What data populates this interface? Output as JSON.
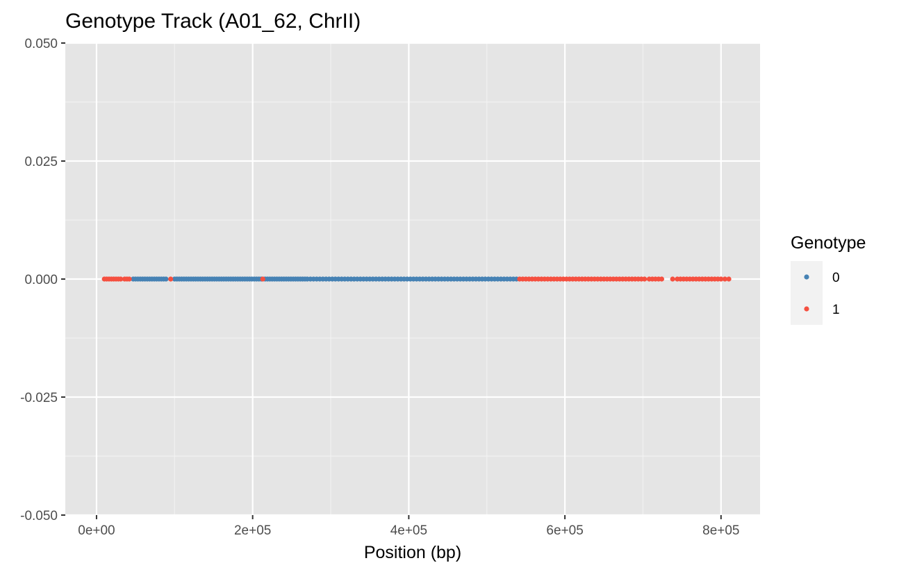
{
  "chart_data": {
    "type": "scatter",
    "title": "Genotype Track (A01_62, ChrII)",
    "xlabel": "Position (bp)",
    "ylabel": "",
    "xlim": [
      -40000,
      850000
    ],
    "ylim": [
      -0.05,
      0.05
    ],
    "x_ticks": [
      {
        "value": 0,
        "label": "0e+00"
      },
      {
        "value": 200000,
        "label": "2e+05"
      },
      {
        "value": 400000,
        "label": "4e+05"
      },
      {
        "value": 600000,
        "label": "6e+05"
      },
      {
        "value": 800000,
        "label": "8e+05"
      }
    ],
    "y_ticks": [
      {
        "value": 0.05,
        "label": "0.050"
      },
      {
        "value": 0.025,
        "label": "0.025"
      },
      {
        "value": 0,
        "label": "0.000"
      },
      {
        "value": -0.025,
        "label": "-0.025"
      },
      {
        "value": -0.05,
        "label": "-0.050"
      }
    ],
    "grid": true,
    "legend": {
      "title": "Genotype",
      "position": "right"
    },
    "series": [
      {
        "name": "0",
        "color": "#4682b4",
        "y": 0,
        "x": [
          47000,
          50000,
          53000,
          56000,
          59000,
          62000,
          65000,
          68000,
          71000,
          74000,
          77000,
          80000,
          83000,
          86000,
          89000,
          100000,
          103000,
          106000,
          109000,
          112000,
          115000,
          118000,
          121000,
          124000,
          127000,
          130000,
          133000,
          136000,
          139000,
          142000,
          145000,
          148000,
          151000,
          154000,
          157000,
          160000,
          163000,
          166000,
          169000,
          172000,
          175000,
          178000,
          181000,
          184000,
          187000,
          190000,
          193000,
          196000,
          199000,
          202000,
          205000,
          208000,
          211000,
          216000,
          219000,
          222000,
          225000,
          228000,
          231000,
          234000,
          237000,
          240000,
          243000,
          246000,
          249000,
          252000,
          255000,
          258000,
          261000,
          264000,
          267000,
          270000,
          274000,
          278000,
          282000,
          286000,
          290000,
          294000,
          298000,
          302000,
          306000,
          310000,
          314000,
          318000,
          322000,
          326000,
          330000,
          334000,
          338000,
          342000,
          346000,
          350000,
          354000,
          358000,
          362000,
          366000,
          370000,
          374000,
          378000,
          382000,
          386000,
          390000,
          394000,
          398000,
          402000,
          406000,
          410000,
          414000,
          418000,
          422000,
          426000,
          430000,
          434000,
          438000,
          442000,
          446000,
          450000,
          454000,
          458000,
          462000,
          466000,
          470000,
          474000,
          478000,
          482000,
          486000,
          490000,
          494000,
          498000,
          502000,
          506000,
          510000,
          514000,
          518000,
          522000,
          526000,
          530000,
          534000,
          538000
        ]
      },
      {
        "name": "1",
        "color": "#f55040",
        "y": 0,
        "x": [
          10000,
          13000,
          16000,
          19000,
          22000,
          25000,
          28000,
          31000,
          36000,
          39000,
          42000,
          95000,
          213000,
          542000,
          546000,
          550000,
          554000,
          558000,
          562000,
          566000,
          570000,
          574000,
          578000,
          582000,
          586000,
          590000,
          594000,
          598000,
          602000,
          606000,
          610000,
          614000,
          618000,
          622000,
          626000,
          630000,
          634000,
          638000,
          642000,
          646000,
          650000,
          654000,
          658000,
          662000,
          666000,
          670000,
          674000,
          678000,
          682000,
          686000,
          690000,
          694000,
          698000,
          702000,
          708000,
          712000,
          716000,
          720000,
          724000,
          738000,
          744000,
          748000,
          752000,
          756000,
          760000,
          764000,
          768000,
          772000,
          776000,
          780000,
          784000,
          788000,
          792000,
          796000,
          800000,
          805000,
          810000
        ]
      }
    ]
  }
}
